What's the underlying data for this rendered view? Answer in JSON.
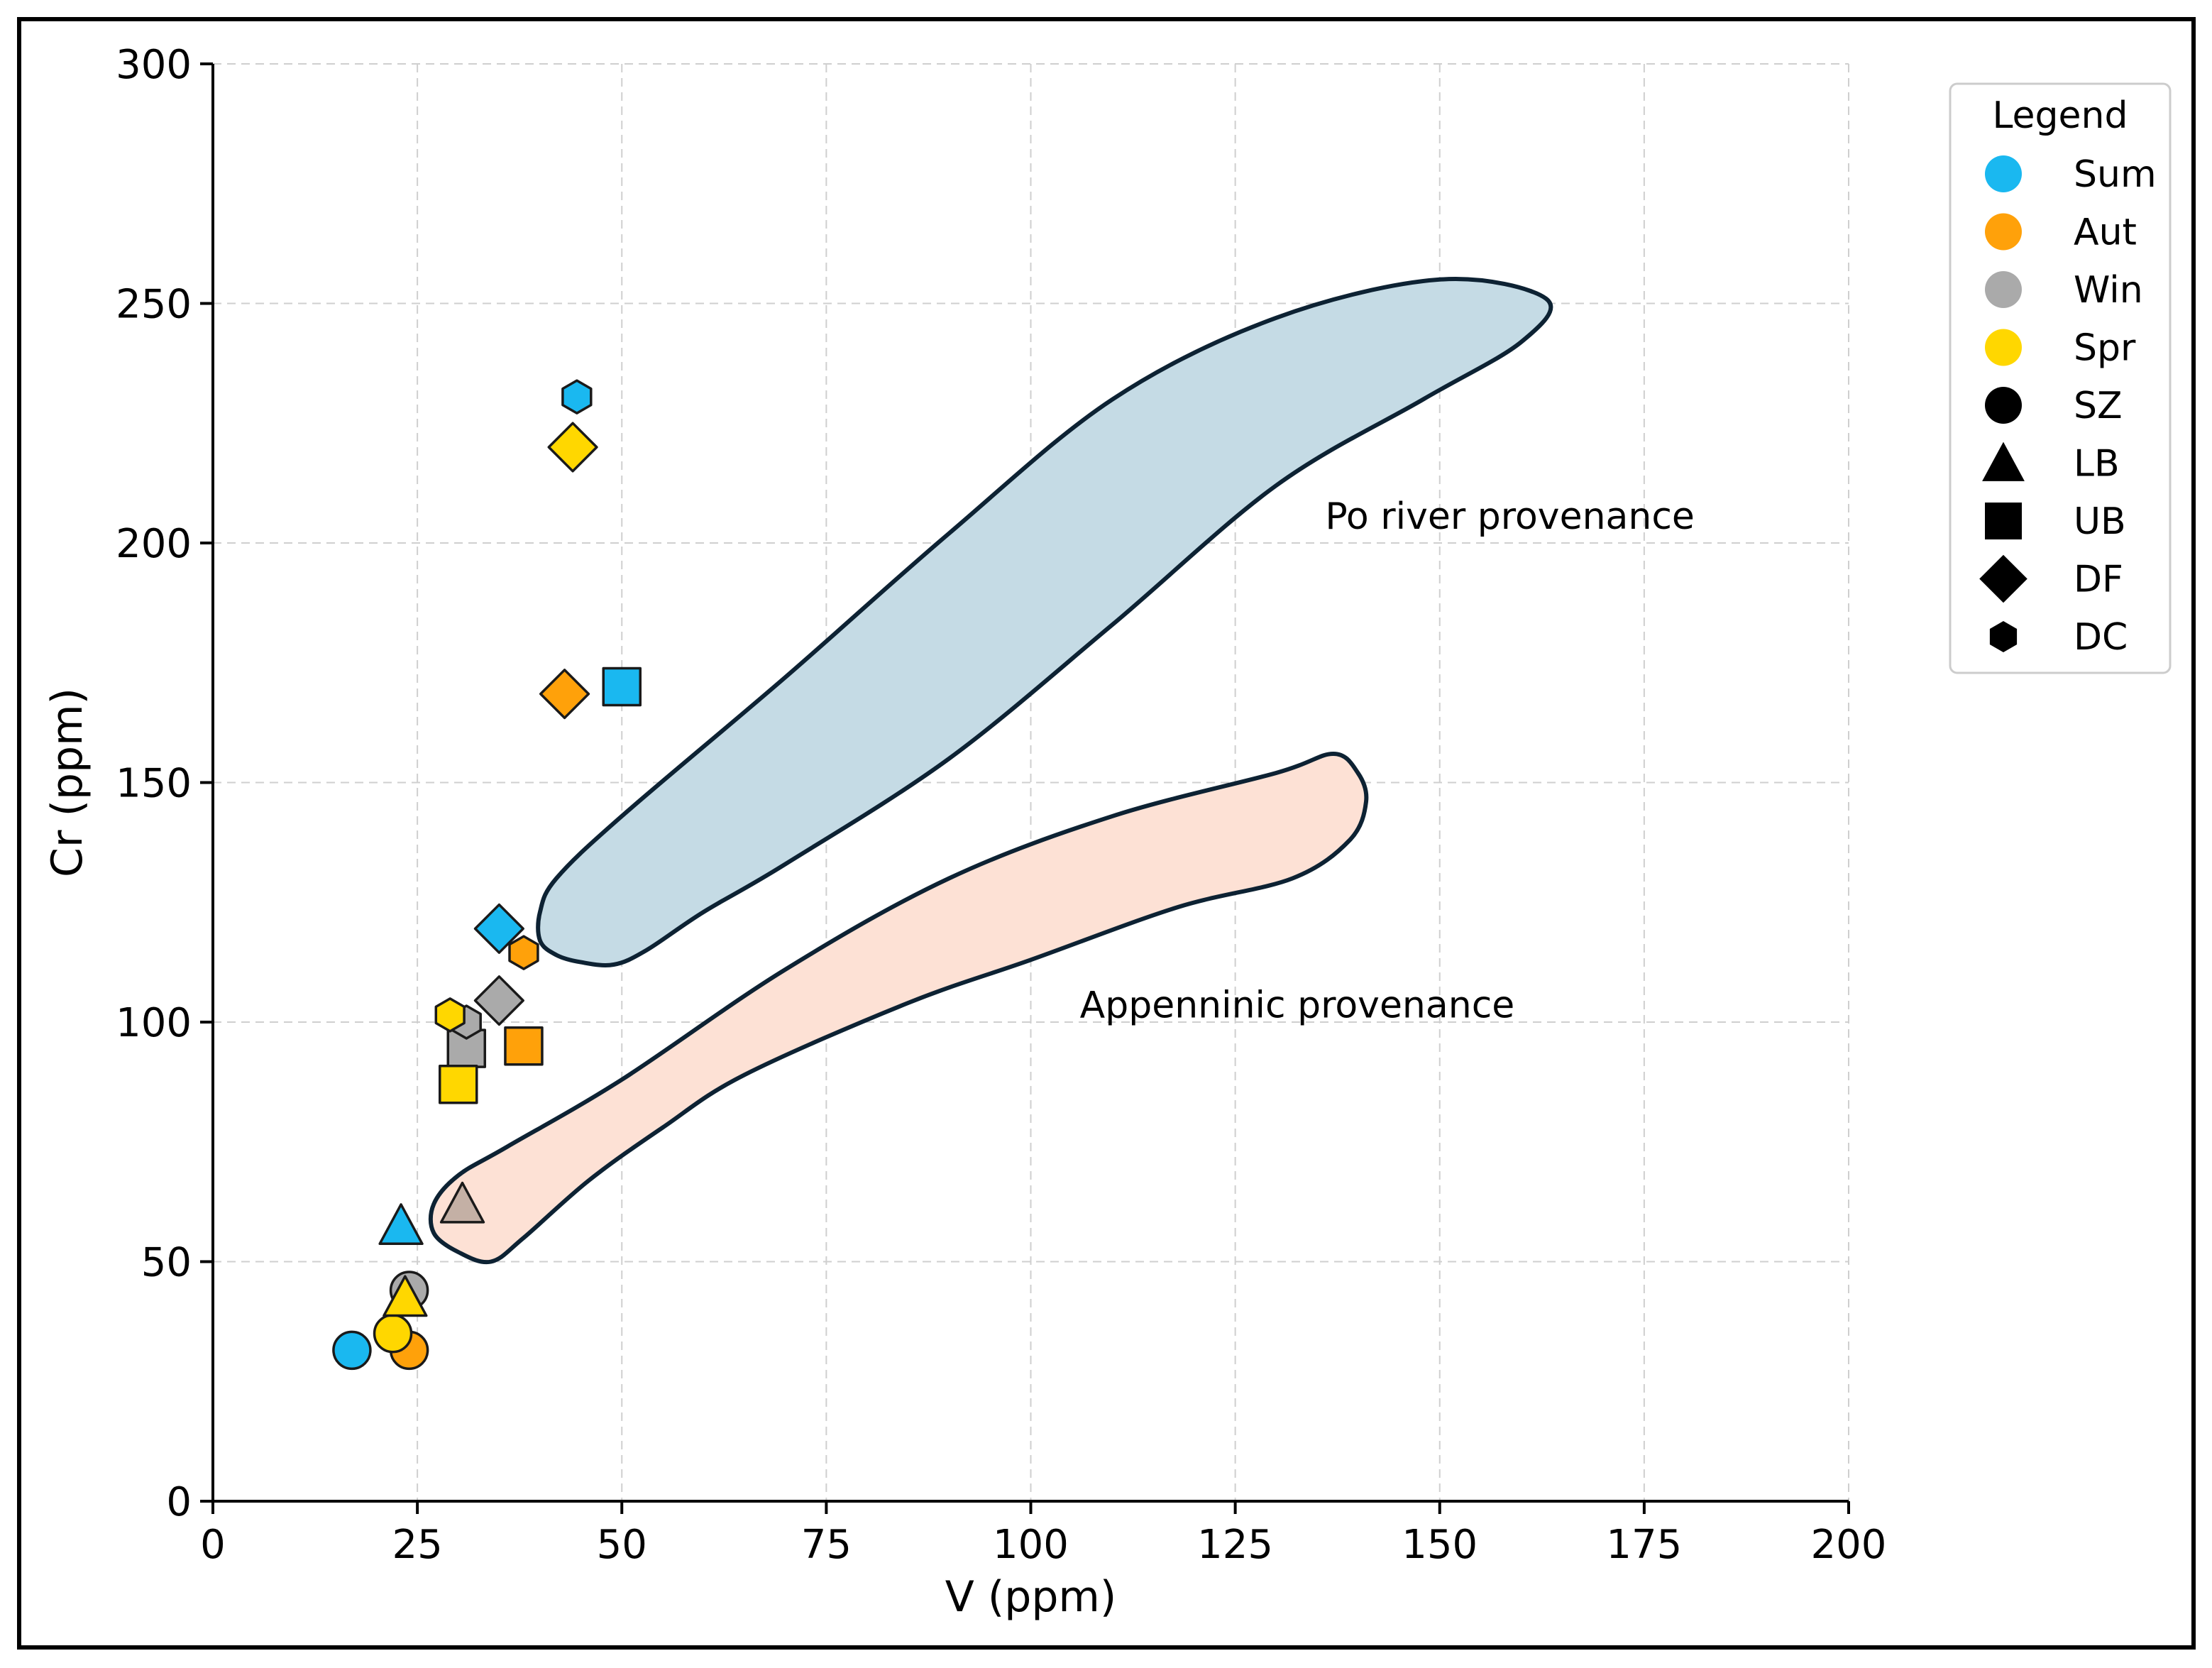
{
  "chart_data": {
    "type": "scatter",
    "xlabel": "V (ppm)",
    "ylabel": "Cr (ppm)",
    "xlim": [
      0,
      200
    ],
    "ylim": [
      0,
      300
    ],
    "xticks": [
      0,
      25,
      50,
      75,
      100,
      125,
      150,
      175,
      200
    ],
    "yticks": [
      0,
      50,
      100,
      150,
      200,
      250,
      300
    ],
    "grid": true,
    "legend": {
      "title": "Legend",
      "placement": "top-right",
      "seasons": [
        {
          "label": "Sum",
          "color": "#1ab8f0"
        },
        {
          "label": "Aut",
          "color": "#ffa10a"
        },
        {
          "label": "Win",
          "color": "#aaaaaa"
        },
        {
          "label": "Spr",
          "color": "#ffd700"
        }
      ],
      "sites": [
        {
          "label": "SZ",
          "marker": "circle"
        },
        {
          "label": "LB",
          "marker": "triangle"
        },
        {
          "label": "UB",
          "marker": "square"
        },
        {
          "label": "DF",
          "marker": "diamond"
        },
        {
          "label": "DC",
          "marker": "hexagon"
        }
      ]
    },
    "regions": [
      {
        "name": "Po river provenance",
        "fill": "#c5dbe5",
        "outline": [
          [
            49,
            112
          ],
          [
            45,
            112.5
          ],
          [
            42,
            114
          ],
          [
            40,
            117
          ],
          [
            40,
            123
          ],
          [
            42,
            130
          ],
          [
            50,
            143
          ],
          [
            70,
            172
          ],
          [
            90,
            202
          ],
          [
            110,
            230
          ],
          [
            130,
            247
          ],
          [
            150,
            255
          ],
          [
            163,
            251
          ],
          [
            160,
            242
          ],
          [
            148,
            230
          ],
          [
            130,
            212
          ],
          [
            110,
            183
          ],
          [
            90,
            155
          ],
          [
            70,
            133
          ],
          [
            60,
            123
          ],
          [
            53,
            115
          ]
        ]
      },
      {
        "name": "Appenninic provenance",
        "fill": "#fde1d5",
        "outline": [
          [
            34,
            50
          ],
          [
            30,
            52
          ],
          [
            27,
            56
          ],
          [
            27,
            62
          ],
          [
            30,
            68
          ],
          [
            36,
            74
          ],
          [
            50,
            88
          ],
          [
            70,
            111
          ],
          [
            90,
            130
          ],
          [
            110,
            143
          ],
          [
            130,
            152
          ],
          [
            137,
            156
          ],
          [
            140,
            152
          ],
          [
            141,
            146
          ],
          [
            139,
            138
          ],
          [
            132,
            130
          ],
          [
            118,
            124
          ],
          [
            100,
            113
          ],
          [
            85,
            104
          ],
          [
            65,
            89
          ],
          [
            55,
            78
          ],
          [
            46,
            67
          ],
          [
            38,
            55
          ]
        ]
      }
    ],
    "annotations": [
      {
        "text": "Po river provenance",
        "x": 136,
        "y": 203
      },
      {
        "text": "Appenninic provenance",
        "x": 106,
        "y": 101
      }
    ],
    "points": [
      {
        "x": 17,
        "y": 31.5,
        "season": "Sum",
        "marker": "circle"
      },
      {
        "x": 24,
        "y": 31.5,
        "season": "Aut",
        "marker": "circle"
      },
      {
        "x": 24,
        "y": 44,
        "season": "Win",
        "marker": "circle"
      },
      {
        "x": 22,
        "y": 35,
        "season": "Spr",
        "marker": "circle"
      },
      {
        "x": 23,
        "y": 57.5,
        "season": "Sum",
        "marker": "triangle"
      },
      {
        "x": 30.5,
        "y": 62,
        "season": "Aut",
        "marker": "triangle",
        "color": "#c4b0a5"
      },
      {
        "x": 23.5,
        "y": 42.5,
        "season": "Spr",
        "marker": "triangle"
      },
      {
        "x": 50,
        "y": 170,
        "season": "Sum",
        "marker": "square"
      },
      {
        "x": 38,
        "y": 95,
        "season": "Aut",
        "marker": "square"
      },
      {
        "x": 31,
        "y": 94.5,
        "season": "Win",
        "marker": "square"
      },
      {
        "x": 30,
        "y": 87,
        "season": "Spr",
        "marker": "square"
      },
      {
        "x": 35,
        "y": 119.5,
        "season": "Sum",
        "marker": "diamond"
      },
      {
        "x": 43,
        "y": 168.5,
        "season": "Aut",
        "marker": "diamond"
      },
      {
        "x": 35,
        "y": 104.5,
        "season": "Win",
        "marker": "diamond"
      },
      {
        "x": 44,
        "y": 220,
        "season": "Spr",
        "marker": "diamond"
      },
      {
        "x": 44.5,
        "y": 230.5,
        "season": "Sum",
        "marker": "hexagon"
      },
      {
        "x": 38,
        "y": 114.5,
        "season": "Aut",
        "marker": "hexagon"
      },
      {
        "x": 31,
        "y": 100,
        "season": "Win",
        "marker": "hexagon"
      },
      {
        "x": 29,
        "y": 101.5,
        "season": "Spr",
        "marker": "hexagon"
      }
    ]
  }
}
